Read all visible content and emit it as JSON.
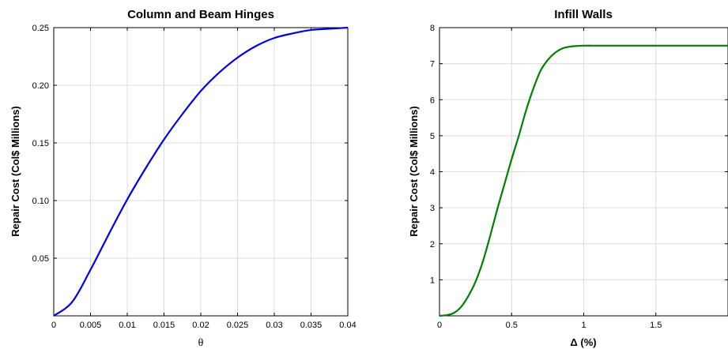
{
  "chart_data": [
    {
      "type": "line",
      "title": "Column and Beam Hinges",
      "xlabel": "θ",
      "ylabel": "Repair Cost (Col$ Millions)",
      "xlim": [
        0,
        0.04
      ],
      "ylim": [
        0,
        0.25
      ],
      "grid": true,
      "x_ticks": [
        "0",
        "0.005",
        "0.01",
        "0.015",
        "0.02",
        "0.025",
        "0.03",
        "0.035",
        "0.04"
      ],
      "y_ticks": [
        "0.05",
        "0.10",
        "0.15",
        "0.20",
        "0.25"
      ],
      "series": [
        {
          "color": "#0000e6",
          "x": [
            0,
            0.0025,
            0.005,
            0.0075,
            0.01,
            0.0125,
            0.015,
            0.0175,
            0.02,
            0.0225,
            0.025,
            0.0275,
            0.03,
            0.0325,
            0.035,
            0.0375,
            0.04
          ],
          "y": [
            0,
            0.012,
            0.04,
            0.071,
            0.101,
            0.128,
            0.153,
            0.175,
            0.195,
            0.211,
            0.224,
            0.234,
            0.241,
            0.245,
            0.248,
            0.249,
            0.25
          ]
        }
      ]
    },
    {
      "type": "line",
      "title": "Infill Walls",
      "xlabel": "Δ (%)",
      "ylabel": "Repair Cost (Col$ Millions)",
      "xlim": [
        0,
        2
      ],
      "ylim": [
        0,
        8
      ],
      "grid": true,
      "x_ticks": [
        "0",
        "0.5",
        "1",
        "1.5"
      ],
      "y_ticks": [
        "1",
        "2",
        "3",
        "4",
        "5",
        "6",
        "7",
        "8"
      ],
      "series": [
        {
          "color": "#007f00",
          "x": [
            0,
            0.05,
            0.1,
            0.15,
            0.2,
            0.25,
            0.3,
            0.35,
            0.4,
            0.45,
            0.5,
            0.55,
            0.6,
            0.65,
            0.7,
            0.75,
            0.8,
            0.85,
            0.9,
            0.95,
            1.0,
            1.1,
            1.2,
            1.5,
            2.0
          ],
          "y": [
            0,
            0.02,
            0.08,
            0.25,
            0.55,
            0.95,
            1.5,
            2.2,
            2.95,
            3.65,
            4.35,
            5.0,
            5.7,
            6.3,
            6.8,
            7.1,
            7.3,
            7.42,
            7.47,
            7.49,
            7.5,
            7.5,
            7.5,
            7.5,
            7.5
          ]
        }
      ]
    }
  ]
}
